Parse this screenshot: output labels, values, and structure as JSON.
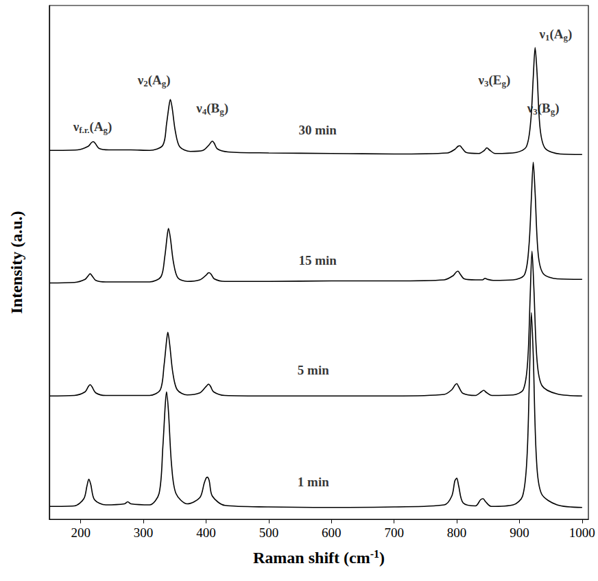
{
  "chart_data": {
    "type": "line",
    "x_label": "Raman shift (cm-1)",
    "y_label": "Intensity (a.u.)",
    "xlim": [
      150,
      1010
    ],
    "xticks": [
      200,
      300,
      400,
      500,
      600,
      700,
      800,
      900,
      1000
    ],
    "ylim": [
      0,
      100
    ],
    "tick_labels": "x",
    "grid": false,
    "color": "#000000",
    "series": [
      {
        "name": "1 min",
        "label_x": 571,
        "label_y": 7.3,
        "x": [
          150,
          190,
          205,
          210,
          213,
          216,
          222,
          240,
          270,
          275,
          280,
          310,
          325,
          331,
          335,
          337,
          340,
          345,
          352,
          370,
          390,
          397,
          400,
          402,
          405,
          410,
          430,
          500,
          600,
          700,
          780,
          792,
          797,
          800,
          803,
          810,
          830,
          838,
          842,
          846,
          855,
          890,
          905,
          912,
          916,
          919,
          922,
          927,
          935,
          960,
          1000
        ],
        "values": [
          2.5,
          2.6,
          4.0,
          6.5,
          7.8,
          6.8,
          3.8,
          2.8,
          3.0,
          3.4,
          3.0,
          2.8,
          5.0,
          14.0,
          22.5,
          24.8,
          21.0,
          10.5,
          5.0,
          3.0,
          4.2,
          7.0,
          8.0,
          8.2,
          7.5,
          4.5,
          2.7,
          2.4,
          2.3,
          2.4,
          2.8,
          4.5,
          7.5,
          8.0,
          6.5,
          3.2,
          2.6,
          3.8,
          4.0,
          3.4,
          2.5,
          2.8,
          4.5,
          12.0,
          28.0,
          40.2,
          32.0,
          12.0,
          5.0,
          2.8,
          2.3
        ]
      },
      {
        "name": "5 min",
        "label_x": 571,
        "label_y": 29.1,
        "x": [
          150,
          190,
          207,
          212,
          215,
          218,
          224,
          240,
          270,
          275,
          280,
          310,
          327,
          333,
          337,
          339,
          342,
          347,
          354,
          370,
          390,
          399,
          402,
          404,
          407,
          412,
          430,
          500,
          600,
          700,
          780,
          792,
          797,
          800,
          803,
          810,
          830,
          839,
          843,
          847,
          856,
          890,
          906,
          913,
          917,
          920,
          923,
          928,
          936,
          960,
          1000
        ],
        "values": [
          24.0,
          24.1,
          24.8,
          25.8,
          26.2,
          25.8,
          24.6,
          24.1,
          24.1,
          24.1,
          24.1,
          24.1,
          25.2,
          30.0,
          34.8,
          36.4,
          34.0,
          28.5,
          25.2,
          24.2,
          24.6,
          25.7,
          26.1,
          26.3,
          25.9,
          24.8,
          24.1,
          24.0,
          24.0,
          24.0,
          24.3,
          25.2,
          26.1,
          26.4,
          25.8,
          24.5,
          24.1,
          24.8,
          25.1,
          24.7,
          24.1,
          24.2,
          25.2,
          30.5,
          43.0,
          52.2,
          45.0,
          31.0,
          26.0,
          24.4,
          24.0
        ]
      },
      {
        "name": "15 min",
        "label_x": 578,
        "label_y": 50.4,
        "x": [
          150,
          190,
          207,
          212,
          215,
          218,
          224,
          240,
          270,
          275,
          280,
          310,
          328,
          334,
          338,
          340,
          343,
          348,
          355,
          370,
          390,
          400,
          403,
          405,
          408,
          413,
          430,
          500,
          600,
          700,
          780,
          794,
          799,
          802,
          805,
          812,
          830,
          841,
          845,
          849,
          858,
          890,
          908,
          915,
          919,
          922,
          925,
          930,
          938,
          960,
          1000
        ],
        "values": [
          46.0,
          46.1,
          46.7,
          47.4,
          47.8,
          47.4,
          46.5,
          46.2,
          46.2,
          46.2,
          46.2,
          46.2,
          47.2,
          51.0,
          55.2,
          56.6,
          54.8,
          50.0,
          47.0,
          46.3,
          46.6,
          47.5,
          47.9,
          48.0,
          47.7,
          46.8,
          46.3,
          46.3,
          46.4,
          46.4,
          46.6,
          47.4,
          48.1,
          48.3,
          47.8,
          46.8,
          46.6,
          46.6,
          46.9,
          46.7,
          46.5,
          46.6,
          47.6,
          53.0,
          62.5,
          69.5,
          63.5,
          51.5,
          47.8,
          46.8,
          46.7
        ]
      },
      {
        "name": "30 min",
        "label_x": 578,
        "label_y": 75.8,
        "x": [
          150,
          195,
          212,
          217,
          220,
          223,
          229,
          245,
          270,
          275,
          280,
          310,
          331,
          337,
          341,
          343,
          346,
          351,
          358,
          375,
          395,
          405,
          408,
          410,
          413,
          418,
          435,
          500,
          600,
          700,
          785,
          797,
          802,
          805,
          808,
          815,
          835,
          844,
          848,
          852,
          861,
          895,
          911,
          918,
          922,
          925,
          928,
          933,
          941,
          965,
          1000
        ],
        "values": [
          71.8,
          71.9,
          72.6,
          73.3,
          73.5,
          73.2,
          72.2,
          71.9,
          71.9,
          71.9,
          71.9,
          71.8,
          72.8,
          77.0,
          80.6,
          81.7,
          80.0,
          75.5,
          72.5,
          71.6,
          71.8,
          72.9,
          73.4,
          73.6,
          73.2,
          72.1,
          71.5,
          71.3,
          71.2,
          71.1,
          71.3,
          72.0,
          72.6,
          72.7,
          72.3,
          71.4,
          71.2,
          71.8,
          72.3,
          71.9,
          71.2,
          71.4,
          72.5,
          77.5,
          86.0,
          91.8,
          87.0,
          76.0,
          72.2,
          71.1,
          71.0
        ]
      }
    ],
    "annotations": [
      {
        "parts": [
          "ν",
          "f.r.",
          "(A",
          "g",
          ")"
        ],
        "x": 219,
        "y": 76.5
      },
      {
        "parts": [
          "ν",
          "2",
          "(A",
          "g",
          ")"
        ],
        "x": 317,
        "y": 85.5
      },
      {
        "parts": [
          "ν",
          "4",
          "(B",
          "g",
          ")"
        ],
        "x": 410,
        "y": 80.0
      },
      {
        "parts": [
          "ν",
          "3",
          "(E",
          "g",
          ")"
        ],
        "x": 860,
        "y": 85.5
      },
      {
        "parts": [
          "ν",
          "3",
          "(B",
          "g",
          ")"
        ],
        "x": 938,
        "y": 80.0
      },
      {
        "parts": [
          "ν",
          "1",
          "(A",
          "g",
          ")"
        ],
        "x": 958,
        "y": 94.5
      }
    ]
  }
}
